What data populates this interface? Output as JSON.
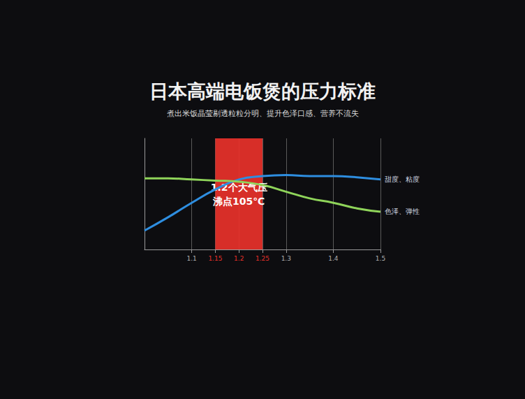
{
  "chart_data": {
    "type": "line",
    "title": "日本高端电饭煲的压力标准",
    "subtitle": "煮出米饭晶莹剔透粒粒分明、提升色泽口感、营养不流失",
    "x": [
      1.0,
      1.05,
      1.1,
      1.15,
      1.2,
      1.25,
      1.3,
      1.35,
      1.4,
      1.45,
      1.5
    ],
    "series": [
      {
        "name": "甜度、粘度",
        "color": "#2e8ee0",
        "values": [
          1.7,
          2.9,
          4.2,
          5.4,
          6.3,
          6.6,
          6.7,
          6.6,
          6.6,
          6.5,
          6.3
        ]
      },
      {
        "name": "色泽、弹性",
        "color": "#8fd45a",
        "values": [
          6.4,
          6.4,
          6.3,
          6.2,
          6.1,
          5.8,
          5.2,
          4.6,
          4.2,
          3.7,
          3.4
        ]
      }
    ],
    "xlim": [
      1.0,
      1.5
    ],
    "xticks": [
      1.1,
      1.15,
      1.2,
      1.25,
      1.3,
      1.4,
      1.5
    ],
    "ylim": [
      0,
      10
    ],
    "tick_labels": "x",
    "grid": true,
    "annotations": [
      {
        "text": "1.2个大气压\n沸点105℃",
        "x_range": [
          1.15,
          1.25
        ],
        "color": "#e8312a"
      }
    ]
  }
}
